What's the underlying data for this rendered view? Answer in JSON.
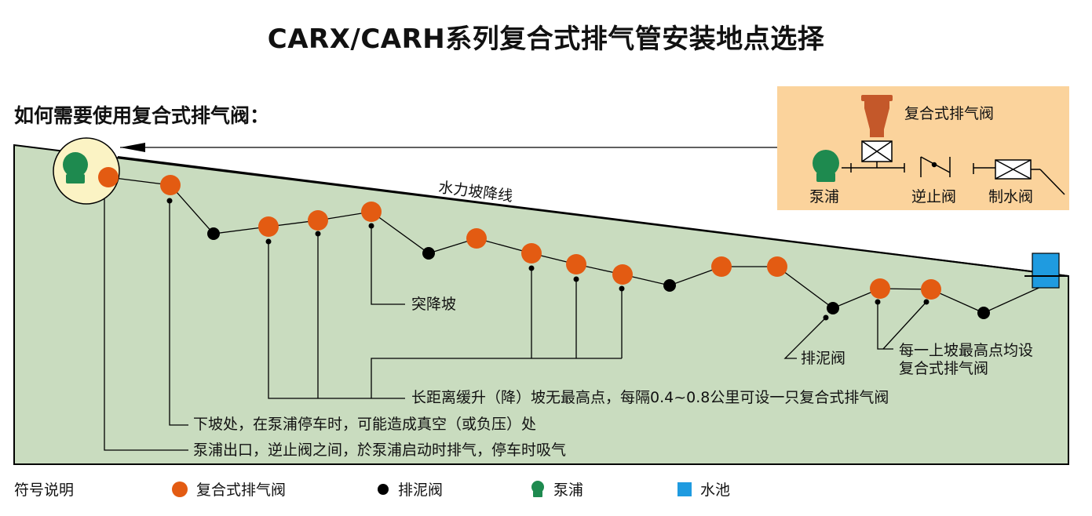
{
  "title": "CARX/CARH系列复合式排气管安装地点选择",
  "subtitle": "如何需要使用复合式排气阀：",
  "hydraulic_grade_line": "水力坡降线",
  "inset": {
    "air_valve_label": "复合式排气阀",
    "pump_label": "泵浦",
    "check_valve_label": "逆止阀",
    "gate_valve_label": "制水阀"
  },
  "annotations": {
    "sudden_drop": "突降坡",
    "drain_valve": "排泥阀",
    "each_peak_line1": "每一上坡最高点均设",
    "each_peak_line2": "复合式排气阀",
    "long_distance": "长距离缓升（降）坡无最高点，每隔0.4~0.8公里可设一只复合式排气阀",
    "downslope": "下坡处，在泵浦停车时，可能造成真空（或负压）处",
    "pump_outlet": "泵浦出口，逆止阀之间，於泵浦启动时排气，停车时吸气"
  },
  "legend": {
    "title": "符号说明",
    "air_valve": "复合式排气阀",
    "drain_valve": "排泥阀",
    "pump": "泵浦",
    "reservoir": "水池"
  },
  "colors": {
    "ground": "#c9dcbf",
    "air_valve": "#e35b12",
    "drain_valve": "#000000",
    "pump": "#1e8a4f",
    "reservoir": "#1f9be0",
    "inset_bg": "#fbd39c",
    "pump_halo": "#fbf3c4",
    "inset_valve": "#c4582a"
  },
  "icons": {
    "air_valve": "orange-dot",
    "drain_valve": "black-dot",
    "pump": "green-pump-icon",
    "reservoir": "blue-square"
  }
}
